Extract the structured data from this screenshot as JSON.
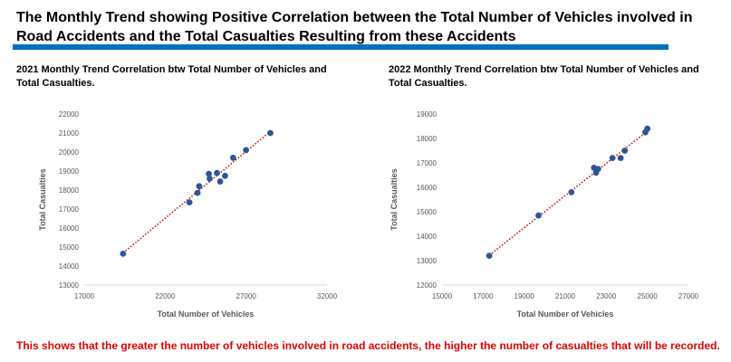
{
  "page_title": "The Monthly Trend showing Positive Correlation between the Total Number of Vehicles involved in Road Accidents and the Total Casualties Resulting from these Accidents",
  "accent_color": "#0070c0",
  "footer_note": "This shows that the greater the number of vehicles involved in road accidents, the higher the number of casualties that will be recorded.",
  "footer_color": "#e00000",
  "chart_data": [
    {
      "type": "scatter",
      "title": "2021 Monthly Trend Correlation btw Total Number of Vehicles and Total Casualties.",
      "xlabel": "Total Number of Vehicles",
      "ylabel": "Total Casualties",
      "xlim": [
        17000,
        32000
      ],
      "ylim": [
        13000,
        22000
      ],
      "xticks": [
        17000,
        22000,
        27000,
        32000
      ],
      "yticks": [
        13000,
        14000,
        15000,
        16000,
        17000,
        18000,
        19000,
        20000,
        21000,
        22000
      ],
      "trendline": "linear",
      "grid": false,
      "legend": "none",
      "marker_color": "#2f5597",
      "trend_color": "#c00000",
      "points": [
        {
          "x": 19400,
          "y": 14650
        },
        {
          "x": 23500,
          "y": 17350
        },
        {
          "x": 24000,
          "y": 17850
        },
        {
          "x": 24100,
          "y": 18200
        },
        {
          "x": 24700,
          "y": 18850
        },
        {
          "x": 24750,
          "y": 18600
        },
        {
          "x": 25200,
          "y": 18900
        },
        {
          "x": 25400,
          "y": 18450
        },
        {
          "x": 25700,
          "y": 18750
        },
        {
          "x": 26200,
          "y": 19700
        },
        {
          "x": 27000,
          "y": 20100
        },
        {
          "x": 28500,
          "y": 21000
        }
      ]
    },
    {
      "type": "scatter",
      "title": "2022 Monthly Trend Correlation btw Total Number of Vehicles and Total Casualties.",
      "xlabel": "Total Number of Vehicles",
      "ylabel": "Total Casualties",
      "xlim": [
        15000,
        27000
      ],
      "ylim": [
        12000,
        19000
      ],
      "xticks": [
        15000,
        17000,
        19000,
        21000,
        23000,
        25000,
        27000
      ],
      "yticks": [
        12000,
        13000,
        14000,
        15000,
        16000,
        17000,
        18000,
        19000
      ],
      "trendline": "linear",
      "grid": false,
      "legend": "none",
      "marker_color": "#2f5597",
      "trend_color": "#c00000",
      "points": [
        {
          "x": 17300,
          "y": 13200
        },
        {
          "x": 19700,
          "y": 14850
        },
        {
          "x": 21300,
          "y": 15800
        },
        {
          "x": 22400,
          "y": 16800
        },
        {
          "x": 22500,
          "y": 16600
        },
        {
          "x": 22600,
          "y": 16750
        },
        {
          "x": 23300,
          "y": 17200
        },
        {
          "x": 23700,
          "y": 17200
        },
        {
          "x": 23900,
          "y": 17500
        },
        {
          "x": 24900,
          "y": 18250
        },
        {
          "x": 25000,
          "y": 18400
        }
      ]
    }
  ]
}
